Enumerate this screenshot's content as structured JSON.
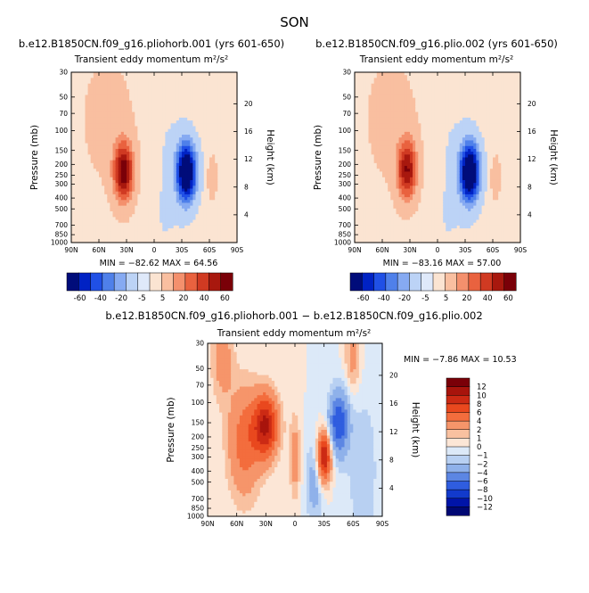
{
  "page": {
    "season": "SON"
  },
  "colors": {
    "plot_border": "#000000",
    "panel_background": "#ffffff"
  },
  "chart_data": [
    {
      "id": "panel-1",
      "type": "heatmap",
      "run_title": "b.e12.B1850CN.f09_g16.pliohorb.001 (yrs 601-650)",
      "variable": "Transient eddy momentum",
      "units": "m²/s²",
      "ylabel": "Pressure (mb)",
      "ylabel_right": "Height (km)",
      "x_ticks": [
        "90N",
        "60N",
        "30N",
        "0",
        "30S",
        "60S",
        "90S"
      ],
      "y_ticks": [
        "30",
        "50",
        "70",
        "100",
        "150",
        "200",
        "250",
        "300",
        "400",
        "500",
        "700",
        "850",
        "1000"
      ],
      "height_ticks": [
        "20",
        "16",
        "12",
        "8",
        "4"
      ],
      "xlim": [
        90,
        -90
      ],
      "ylim": [
        1000,
        30
      ],
      "stats": "MIN = −82.62   MAX = 64.56",
      "colorbar_labels": [
        "-60",
        "-40",
        "-20",
        "-5",
        "5",
        "20",
        "40",
        "60"
      ],
      "features": [
        {
          "lat": 33,
          "p": 235,
          "value": 64,
          "lat_sigma": 8,
          "p_sigma": 0.45
        },
        {
          "lat": -35,
          "p": 235,
          "value": -82,
          "lat_sigma": 8,
          "p_sigma": 0.45
        },
        {
          "lat": -63,
          "p": 265,
          "value": 18,
          "lat_sigma": 3.5,
          "p_sigma": 0.3
        },
        {
          "lat": 0,
          "p": 200,
          "value": 7,
          "lat_sigma": 5,
          "p_sigma": 0.35
        },
        {
          "lat": -12,
          "p": 300,
          "value": -6,
          "lat_sigma": 14,
          "p_sigma": 1.6
        },
        {
          "lat": 50,
          "p": 80,
          "value": 10,
          "lat_sigma": 22,
          "p_sigma": 1.0
        }
      ]
    },
    {
      "id": "panel-2",
      "type": "heatmap",
      "run_title": "b.e12.B1850CN.f09_g16.plio.002 (yrs 601-650)",
      "variable": "Transient eddy momentum",
      "units": "m²/s²",
      "ylabel": "Pressure (mb)",
      "ylabel_right": "Height (km)",
      "x_ticks": [
        "90N",
        "60N",
        "30N",
        "0",
        "30S",
        "60S",
        "90S"
      ],
      "y_ticks": [
        "30",
        "50",
        "70",
        "100",
        "150",
        "200",
        "250",
        "300",
        "400",
        "500",
        "700",
        "850",
        "1000"
      ],
      "height_ticks": [
        "20",
        "16",
        "12",
        "8",
        "4"
      ],
      "xlim": [
        90,
        -90
      ],
      "ylim": [
        1000,
        30
      ],
      "stats": "MIN = −83.16   MAX = 57.00",
      "colorbar_labels": [
        "-60",
        "-40",
        "-20",
        "-5",
        "5",
        "20",
        "40",
        "60"
      ],
      "features": [
        {
          "lat": 33,
          "p": 225,
          "value": 57,
          "lat_sigma": 8,
          "p_sigma": 0.45
        },
        {
          "lat": -35,
          "p": 235,
          "value": -83,
          "lat_sigma": 8,
          "p_sigma": 0.45
        },
        {
          "lat": -63,
          "p": 265,
          "value": 18,
          "lat_sigma": 3.5,
          "p_sigma": 0.3
        },
        {
          "lat": 0,
          "p": 200,
          "value": 7,
          "lat_sigma": 5,
          "p_sigma": 0.35
        },
        {
          "lat": -12,
          "p": 300,
          "value": -6,
          "lat_sigma": 14,
          "p_sigma": 1.6
        },
        {
          "lat": 50,
          "p": 80,
          "value": 10,
          "lat_sigma": 22,
          "p_sigma": 1.0
        }
      ]
    },
    {
      "id": "panel-diff",
      "type": "heatmap",
      "run_title": "b.e12.B1850CN.f09_g16.pliohorb.001 − b.e12.B1850CN.f09_g16.plio.002",
      "variable": "Transient eddy momentum",
      "units": "m²/s²",
      "ylabel": "Pressure (mb)",
      "ylabel_right": "Height (km)",
      "x_ticks": [
        "90N",
        "60N",
        "30N",
        "0",
        "30S",
        "60S",
        "90S"
      ],
      "y_ticks": [
        "30",
        "50",
        "70",
        "100",
        "150",
        "200",
        "250",
        "300",
        "400",
        "500",
        "700",
        "850",
        "1000"
      ],
      "height_ticks": [
        "20",
        "16",
        "12",
        "8",
        "4"
      ],
      "xlim": [
        90,
        -90
      ],
      "ylim": [
        1000,
        30
      ],
      "stats": "MIN =  −7.86   MAX =  10.53",
      "colorbar_labels": [
        "12",
        "10",
        "8",
        "6",
        "4",
        "2",
        "1",
        "0",
        "−1",
        "−2",
        "−4",
        "−6",
        "−8",
        "−10",
        "−12"
      ],
      "features": [
        {
          "lat": 30,
          "p": 160,
          "value": 10,
          "lat_sigma": 9,
          "p_sigma": 0.45
        },
        {
          "lat": -30,
          "p": 300,
          "value": 10.5,
          "lat_sigma": 5,
          "p_sigma": 0.35
        },
        {
          "lat": 52,
          "p": 220,
          "value": 5,
          "lat_sigma": 12,
          "p_sigma": 0.8
        },
        {
          "lat": -45,
          "p": 150,
          "value": -7.8,
          "lat_sigma": 7,
          "p_sigma": 0.45
        },
        {
          "lat": -20,
          "p": 500,
          "value": -3,
          "lat_sigma": 6,
          "p_sigma": 0.6
        },
        {
          "lat": 0,
          "p": 300,
          "value": 3,
          "lat_sigma": 4,
          "p_sigma": 0.6
        },
        {
          "lat": 75,
          "p": 40,
          "value": 3,
          "lat_sigma": 8,
          "p_sigma": 0.6
        },
        {
          "lat": -60,
          "p": 40,
          "value": 3,
          "lat_sigma": 6,
          "p_sigma": 0.5
        },
        {
          "lat": -70,
          "p": 400,
          "value": -1.5,
          "lat_sigma": 14,
          "p_sigma": 1.5
        }
      ]
    }
  ]
}
